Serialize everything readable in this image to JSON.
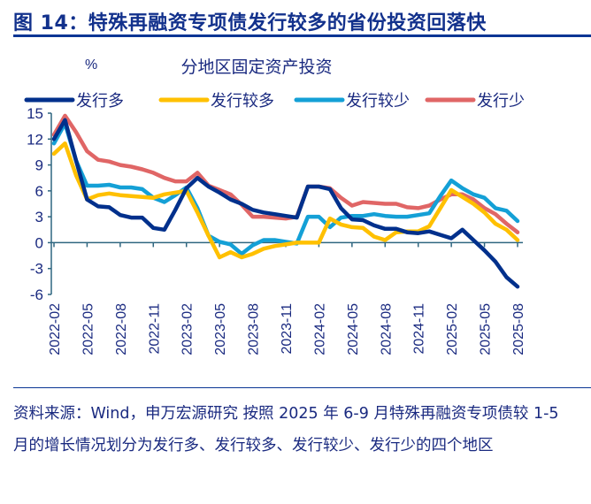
{
  "header": {
    "title": "图 14：特殊再融资专项债发行较多的省份投资回落快"
  },
  "footer": {
    "text": "资料来源：Wind，申万宏源研究 按照 2025 年 6-9 月特殊再融资专项债较 1-5 月的增长情况划分为发行多、发行较多、发行较少、发行少的四个地区"
  },
  "chart_data": {
    "type": "line",
    "title": "分地区固定资产投资",
    "ylabel": "%",
    "xlabel": "",
    "ylim": [
      -6,
      15
    ],
    "yticks": [
      15,
      12,
      9,
      6,
      3,
      0,
      -3,
      -6
    ],
    "xtick_labels": [
      "2022-02",
      "2022-05",
      "2022-08",
      "2022-11",
      "2023-02",
      "2023-05",
      "2023-08",
      "2023-11",
      "2024-02",
      "2024-05",
      "2024-08",
      "2024-11",
      "2025-02",
      "2025-05",
      "2025-08"
    ],
    "x_start": "2022-02",
    "x_end": "2025-08",
    "legend_position": "top",
    "series": [
      {
        "name": "发行多",
        "color": "#00308c",
        "values": [
          12,
          14.2,
          9.5,
          5.0,
          4.2,
          4.1,
          3.2,
          2.9,
          2.9,
          1.7,
          1.5,
          3.8,
          6.3,
          7.5,
          6.5,
          5.8,
          5.0,
          4.5,
          3.8,
          3.5,
          3.3,
          3.1,
          2.9,
          6.5,
          6.5,
          6.2,
          4.0,
          2.7,
          2.6,
          2.0,
          1.6,
          1.6,
          1.2,
          1.1,
          1.3,
          0.9,
          0.5,
          1.5,
          0.3,
          -0.9,
          -2.2,
          -4.0,
          -5.1
        ]
      },
      {
        "name": "发行较多",
        "color": "#ffc000",
        "values": [
          10.3,
          11.5,
          7.8,
          5.0,
          5.5,
          5.7,
          5.5,
          5.4,
          5.3,
          5.2,
          5.6,
          5.8,
          6.0,
          3.5,
          0.8,
          -1.7,
          -1.1,
          -1.7,
          -1.3,
          -0.7,
          -0.4,
          -0.2,
          0,
          0,
          0,
          2.8,
          2.1,
          1.8,
          1.7,
          0.7,
          0.3,
          1.2,
          1.3,
          1.3,
          1.9,
          4.0,
          6.1,
          5.3,
          4.5,
          3.5,
          2.2,
          1.5,
          0.3
        ]
      },
      {
        "name": "发行较少",
        "color": "#14a0d6",
        "values": [
          11.5,
          13.8,
          9.5,
          6.6,
          6.6,
          6.7,
          6.4,
          6.4,
          6.2,
          5.2,
          4.7,
          5.5,
          6.4,
          4.0,
          0.8,
          0.1,
          -0.2,
          -1.3,
          -0.3,
          0.3,
          0.3,
          0.1,
          -0.1,
          3.0,
          3.0,
          1.8,
          2.9,
          3.1,
          3.1,
          3.3,
          3.1,
          3.0,
          3.0,
          3.2,
          3.4,
          5.4,
          7.2,
          6.3,
          5.6,
          5.2,
          4.0,
          3.7,
          2.5
        ]
      },
      {
        "name": "发行少",
        "color": "#e06666",
        "values": [
          12.5,
          14.7,
          12.8,
          10.6,
          9.6,
          9.4,
          9.0,
          8.8,
          8.5,
          8.1,
          7.5,
          7.1,
          7.1,
          8.1,
          6.6,
          6.1,
          5.6,
          4.4,
          3.0,
          3.0,
          2.9,
          2.8,
          3.0,
          6.5,
          6.5,
          6.3,
          5.2,
          4.3,
          4.7,
          4.6,
          4.5,
          4.5,
          4.1,
          4.0,
          4.3,
          5.0,
          5.6,
          5.6,
          5.0,
          4.0,
          3.3,
          2.2,
          1.2
        ]
      }
    ]
  },
  "colors": {
    "text": "#1a2a80",
    "axis": "#2f6680"
  }
}
